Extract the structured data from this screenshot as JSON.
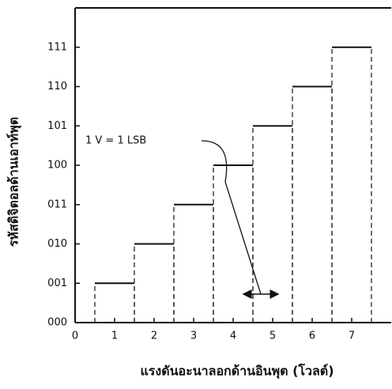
{
  "chart_data": {
    "type": "step",
    "x_label": "แรงดันอะนาลอกด้านอินพุต (โวลต์)",
    "y_label": "รหัสดิจิตอลด้านเอาท์พุต",
    "annotation": "1 V = 1 LSB",
    "x": [
      1,
      2,
      3,
      4,
      5,
      6,
      7
    ],
    "values": [
      1,
      2,
      3,
      4,
      5,
      6,
      7
    ],
    "color": "#111111",
    "xlim": [
      0,
      8
    ],
    "ylim": [
      0,
      8
    ],
    "xticks": [
      0,
      1,
      2,
      3,
      4,
      5,
      6,
      7
    ],
    "yticks": [
      {
        "value": 0,
        "label": "000"
      },
      {
        "value": 1,
        "label": "001"
      },
      {
        "value": 2,
        "label": "010"
      },
      {
        "value": 3,
        "label": "011"
      },
      {
        "value": 4,
        "label": "100"
      },
      {
        "value": 5,
        "label": "101"
      },
      {
        "value": 6,
        "label": "110"
      },
      {
        "value": 7,
        "label": "111"
      }
    ]
  }
}
